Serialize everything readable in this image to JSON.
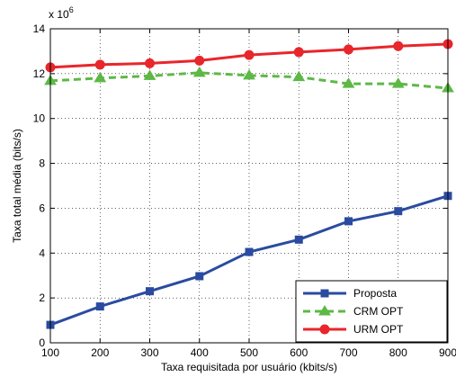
{
  "chart_data": {
    "type": "line",
    "xlabel": "Taxa requisitada por usuário (kbits/s)",
    "ylabel": "Taxa total média (bits/s)",
    "y_multiplier": "x 10",
    "y_multiplier_exp": "6",
    "x": [
      100,
      200,
      300,
      400,
      500,
      600,
      700,
      800,
      900
    ],
    "x_ticks": [
      "100",
      "200",
      "300",
      "400",
      "500",
      "600",
      "700",
      "800",
      "900"
    ],
    "y_ticks": [
      "0",
      "2",
      "4",
      "6",
      "8",
      "10",
      "12",
      "14"
    ],
    "xlim": [
      100,
      900
    ],
    "ylim": [
      0,
      14
    ],
    "grid": true,
    "legend_position": "bottom-right",
    "series": [
      {
        "name": "Proposta",
        "color": "#2A4BA0",
        "style": "solid",
        "marker": "square",
        "values": [
          0.8,
          1.62,
          2.3,
          2.97,
          4.05,
          4.6,
          5.42,
          5.87,
          6.55
        ]
      },
      {
        "name": "CRM OPT",
        "color": "#5DB846",
        "style": "dashed",
        "marker": "triangle",
        "values": [
          11.68,
          11.8,
          11.9,
          12.04,
          11.92,
          11.85,
          11.55,
          11.55,
          11.35
        ]
      },
      {
        "name": "URM OPT",
        "color": "#E8262B",
        "style": "solid",
        "marker": "circle",
        "values": [
          12.28,
          12.4,
          12.46,
          12.58,
          12.83,
          12.96,
          13.08,
          13.23,
          13.32
        ]
      }
    ]
  }
}
